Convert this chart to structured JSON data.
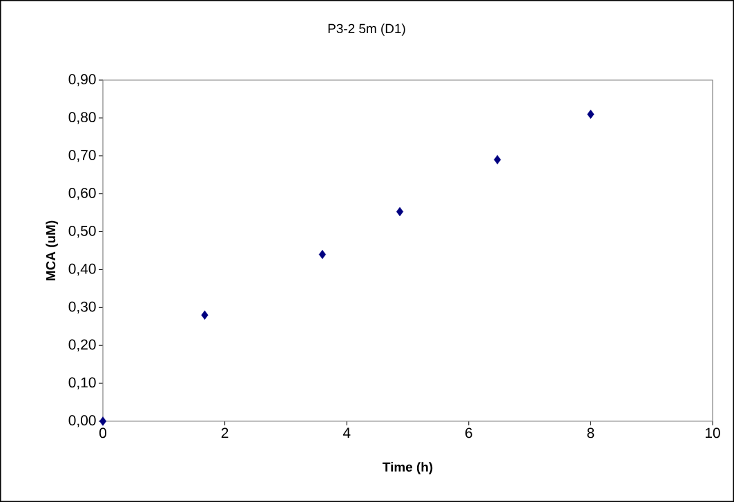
{
  "chart_data": {
    "type": "scatter",
    "title": "P3-2  5m (D1)",
    "xlabel": "Time (h)",
    "ylabel": "MCA (uM)",
    "x": [
      0,
      1.67,
      3.6,
      4.87,
      6.47,
      8.0
    ],
    "series": [
      {
        "color": "#000080",
        "values": [
          0.0,
          0.28,
          0.44,
          0.553,
          0.69,
          0.81
        ]
      }
    ],
    "marker": "diamond",
    "xlim": [
      0,
      10
    ],
    "xticks": [
      0,
      2,
      4,
      6,
      8,
      10
    ],
    "ylim": [
      0,
      0.9
    ],
    "yticks": [
      {
        "value": 0,
        "label": "0,00"
      },
      {
        "value": 0.1,
        "label": "0,10"
      },
      {
        "value": 0.2,
        "label": "0,20"
      },
      {
        "value": 0.3,
        "label": "0,30"
      },
      {
        "value": 0.4,
        "label": "0,40"
      },
      {
        "value": 0.5,
        "label": "0,50"
      },
      {
        "value": 0.6,
        "label": "0,60"
      },
      {
        "value": 0.7,
        "label": "0,70"
      },
      {
        "value": 0.8,
        "label": "0,80"
      },
      {
        "value": 0.9,
        "label": "0,90"
      }
    ],
    "grid": false
  }
}
